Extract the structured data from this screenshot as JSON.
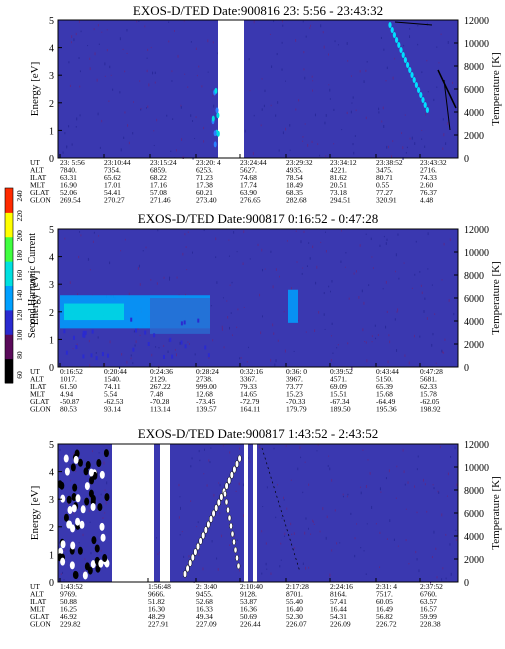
{
  "colors": {
    "background": "#3a38b0",
    "colorbar": [
      "#000000",
      "#5a0a5a",
      "#2a2ad0",
      "#00a0ff",
      "#00e0e0",
      "#40ff40",
      "#ffff00",
      "#ff2a00"
    ]
  },
  "colorbar": {
    "label": "Second Harmonic Current",
    "ticks": [
      "60",
      "80",
      "100",
      "120",
      "140",
      "160",
      "180",
      "200",
      "220",
      "240"
    ]
  },
  "row_labels": [
    "UT",
    "ALT",
    "ILAT",
    "MLT",
    "GLAT",
    "GLON"
  ],
  "chart_data": [
    {
      "type": "heatmap",
      "title": "EXOS-D/TED   Date:900816  23: 5:56 - 23:43:32",
      "ylabel": "Energy [eV]",
      "y2label": "Temperature [K]",
      "ylim": [
        0,
        5
      ],
      "y2lim": [
        0,
        12000
      ],
      "yticks": [
        "0",
        "1",
        "2",
        "3",
        "4",
        "5"
      ],
      "y2ticks": [
        "0",
        "2000",
        "4000",
        "6000",
        "8000",
        "10000",
        "12000"
      ],
      "table": [
        [
          "23: 5:56",
          "23:10:44",
          "23:15:24",
          "23:20: 4",
          "23:24:44",
          "23:29:32",
          "23:34:12",
          "23:38:52",
          "23:43:32"
        ],
        [
          "7840.",
          "7354.",
          "6859.",
          "6253.",
          "5627.",
          "4935.",
          "4221.",
          "3475.",
          "2716."
        ],
        [
          "63.31",
          "65.62",
          "68.22",
          "71.23",
          "74.68",
          "78.54",
          "81.62",
          "80.71",
          "74.33"
        ],
        [
          "16.90",
          "17.01",
          "17.16",
          "17.38",
          "17.74",
          "18.49",
          "20.51",
          "0.55",
          "2.60"
        ],
        [
          "52.06",
          "54.41",
          "57.08",
          "60.21",
          "63.90",
          "68.35",
          "73.18",
          "77.27",
          "76.37"
        ],
        [
          "269.54",
          "270.27",
          "271.46",
          "273.40",
          "276.65",
          "282.68",
          "294.51",
          "320.91",
          "4.48"
        ]
      ]
    },
    {
      "type": "heatmap",
      "title": "EXOS-D/TED   Date:900817  0:16:52 - 0:47:28",
      "ylabel": "Energy [eV]",
      "y2label": "Temperature [K]",
      "ylim": [
        0,
        5
      ],
      "y2lim": [
        0,
        12000
      ],
      "yticks": [
        "0",
        "1",
        "2",
        "3",
        "4",
        "5"
      ],
      "y2ticks": [
        "0",
        "2000",
        "4000",
        "6000",
        "8000",
        "10000",
        "12000"
      ],
      "table": [
        [
          "0:16:52",
          "0:20:44",
          "0:24:36",
          "0:28:24",
          "0:32:16",
          "0:36: 0",
          "0:39:52",
          "0:43:44",
          "0:47:28"
        ],
        [
          "1017.",
          "1540.",
          "2129.",
          "2738.",
          "3367.",
          "3967.",
          "4571.",
          "5150.",
          "5681."
        ],
        [
          "61.50",
          "74.11",
          "267.22",
          "999.00",
          "79.33",
          "73.77",
          "69.09",
          "65.39",
          "62.33"
        ],
        [
          "4.94",
          "5.54",
          "7.48",
          "12.68",
          "14.65",
          "15.23",
          "15.51",
          "15.68",
          "15.78"
        ],
        [
          "-50.87",
          "-62.53",
          "-70.28",
          "-73.45",
          "-72.79",
          "-70.33",
          "-67.34",
          "-64.49",
          "-62.05"
        ],
        [
          "80.53",
          "93.14",
          "113.14",
          "139.57",
          "164.11",
          "179.79",
          "189.50",
          "195.36",
          "198.92"
        ]
      ]
    },
    {
      "type": "heatmap",
      "title": "EXOS-D/TED   Date:900817  1:43:52 - 2:43:52",
      "ylabel": "Energy [eV]",
      "y2label": "Temperature [K]",
      "ylim": [
        0,
        5
      ],
      "y2lim": [
        0,
        12000
      ],
      "yticks": [
        "0",
        "1",
        "2",
        "3",
        "4",
        "5"
      ],
      "y2ticks": [
        "0",
        "2000",
        "4000",
        "6000",
        "8000",
        "10000",
        "12000"
      ],
      "table": [
        [
          "1:43:52",
          "1:56:48",
          "2: 3:40",
          "2:10:40",
          "2:17:28",
          "2:24:16",
          "2:31: 4",
          "2:37:52"
        ],
        [
          "9769.",
          "9666.",
          "9455.",
          "9128.",
          "8701.",
          "8164.",
          "7517.",
          "6760."
        ],
        [
          "50.88",
          "51.82",
          "52.68",
          "53.87",
          "55.40",
          "57.41",
          "60.05",
          "63.57"
        ],
        [
          "16.25",
          "16.30",
          "16.33",
          "16.36",
          "16.40",
          "16.44",
          "16.49",
          "16.57"
        ],
        [
          "46.92",
          "48.29",
          "49.34",
          "50.69",
          "52.30",
          "54.31",
          "56.82",
          "59.99"
        ],
        [
          "229.82",
          "227.91",
          "227.09",
          "226.44",
          "226.07",
          "226.09",
          "226.72",
          "228.38"
        ]
      ]
    }
  ]
}
